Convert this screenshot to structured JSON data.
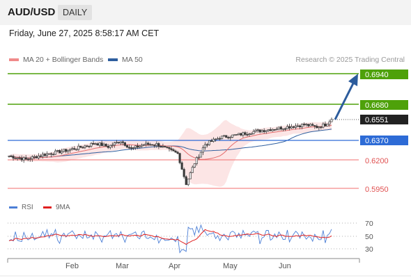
{
  "header": {
    "pair": "AUD/USD",
    "timeframe": "DAILY",
    "datetime": "Friday, June 27, 2025 8:58:17 AM CET"
  },
  "legend": {
    "ma20_label": "MA 20 + Bollinger Bands",
    "ma50_label": "MA 50",
    "credit": "Research © 2025 Trading Central"
  },
  "colors": {
    "ma20": "#f08a8a",
    "ma50": "#2e5e9e",
    "resistance": "#4ea10a",
    "pivot": "#2d6bd6",
    "support": "#f06e6e",
    "candle": "#3a3a3a",
    "current": "#222222"
  },
  "levels": {
    "r2": "0.6940",
    "r1": "0.6680",
    "current": "0.6551",
    "pivot": "0.6370",
    "s1": "0.6200",
    "s2": "0.5950"
  },
  "rsi": {
    "label": "RSI",
    "ma_label": "9MA",
    "ticks": [
      "70",
      "50",
      "30"
    ]
  },
  "x_axis": {
    "months": [
      "Feb",
      "Mar",
      "Apr",
      "May",
      "Jun"
    ]
  },
  "chart_data": {
    "type": "candlestick",
    "series": "AUD/USD daily",
    "levels": [
      0.694,
      0.668,
      0.6551,
      0.637,
      0.62,
      0.595
    ],
    "projection": "upward arrow from 0.6551 toward 0.6940",
    "rsi_ticks": [
      70,
      50,
      30
    ]
  }
}
